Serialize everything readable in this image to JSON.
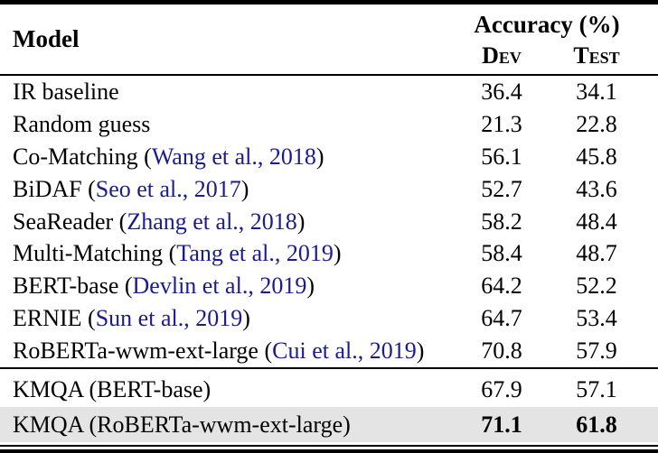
{
  "table": {
    "header": {
      "model_label": "Model",
      "accuracy_label": "Accuracy (%)",
      "dev_label": "Dev",
      "test_label": "Test"
    },
    "punct": {
      "open_paren": "(",
      "close_paren": ")"
    },
    "colors": {
      "citation_link": "#1b1b90",
      "highlight_row_bg": "#e4e4e4",
      "rule": "#000000"
    },
    "rows": [
      {
        "model": "IR baseline",
        "citation": "",
        "dev": "36.4",
        "test": "34.1",
        "bold": false,
        "highlight": false
      },
      {
        "model": "Random guess",
        "citation": "",
        "dev": "21.3",
        "test": "22.8",
        "bold": false,
        "highlight": false
      },
      {
        "model": "Co-Matching",
        "citation": "Wang et al., 2018",
        "dev": "56.1",
        "test": "45.8",
        "bold": false,
        "highlight": false
      },
      {
        "model": "BiDAF",
        "citation": "Seo et al., 2017",
        "dev": "52.7",
        "test": "43.6",
        "bold": false,
        "highlight": false
      },
      {
        "model": "SeaReader",
        "citation": "Zhang et al., 2018",
        "dev": "58.2",
        "test": "48.4",
        "bold": false,
        "highlight": false
      },
      {
        "model": "Multi-Matching",
        "citation": "Tang et al., 2019",
        "dev": "58.4",
        "test": "48.7",
        "bold": false,
        "highlight": false
      },
      {
        "model": "BERT-base",
        "citation": "Devlin et al., 2019",
        "dev": "64.2",
        "test": "52.2",
        "bold": false,
        "highlight": false
      },
      {
        "model": "ERNIE",
        "citation": "Sun et al., 2019",
        "dev": "64.7",
        "test": "53.4",
        "bold": false,
        "highlight": false
      },
      {
        "model": "RoBERTa-wwm-ext-large",
        "citation": "Cui et al., 2019",
        "dev": "70.8",
        "test": "57.9",
        "bold": false,
        "highlight": false
      }
    ],
    "footer_rows": [
      {
        "model": "KMQA (BERT-base)",
        "citation": "",
        "dev": "67.9",
        "test": "57.1",
        "bold": false,
        "highlight": false
      },
      {
        "model": "KMQA (RoBERTa-wwm-ext-large)",
        "citation": "",
        "dev": "71.1",
        "test": "61.8",
        "bold": true,
        "highlight": true
      }
    ]
  }
}
